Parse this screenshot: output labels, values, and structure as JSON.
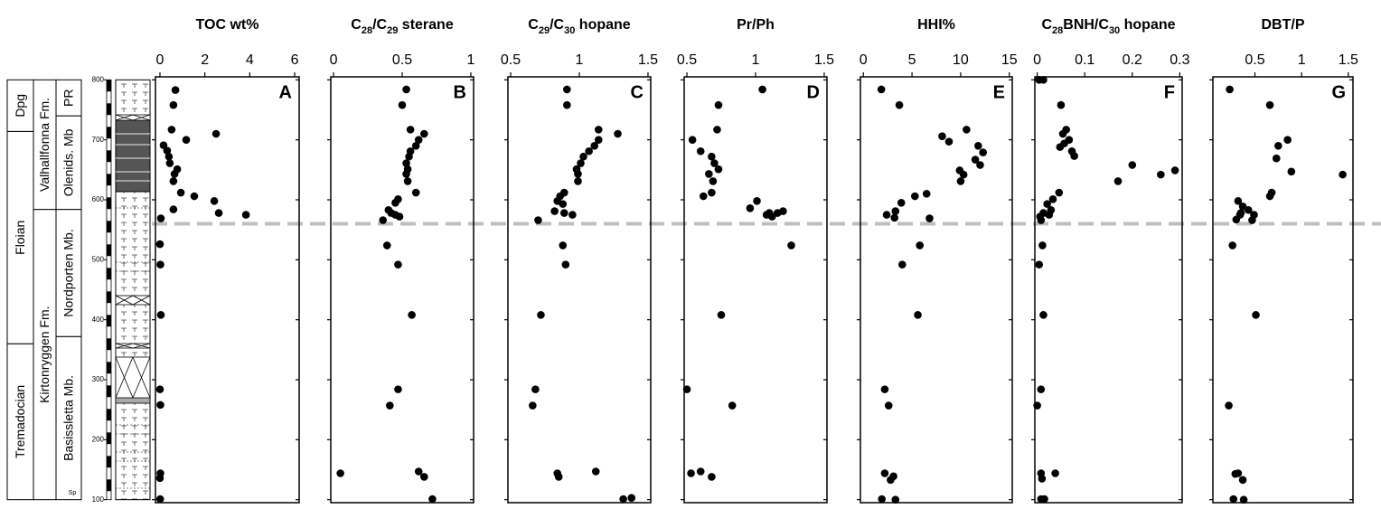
{
  "chart_data": [
    {
      "type": "scatter",
      "title": "TOC wt%",
      "panel_label": "A",
      "color": "#000000",
      "x": [
        0.69,
        0.6,
        0.52,
        1.17,
        2.5,
        0.16,
        0.32,
        0.4,
        0.44,
        0.77,
        0.65,
        0.6,
        0.93,
        1.53,
        2.42,
        2.62,
        0.6,
        3.83,
        0.04,
        0.0,
        0.02,
        0.04,
        0.0,
        0.02,
        0.02,
        0.0,
        0.01
      ],
      "y": [
        783,
        758,
        717,
        700,
        710,
        691,
        682,
        672,
        661,
        651,
        643,
        631,
        612,
        606,
        598,
        578,
        584,
        575,
        569,
        526,
        492,
        408,
        284,
        258,
        144,
        136,
        101
      ],
      "xlim": [
        -0.2,
        6.2
      ],
      "xticks": [
        0,
        2,
        4,
        6
      ],
      "ylim": [
        95,
        805
      ],
      "yticks": [
        100,
        200,
        300,
        400,
        500,
        600,
        700,
        800
      ]
    },
    {
      "type": "scatter",
      "title": "C28/C29 sterane",
      "panel_label": "B",
      "color": "#000000",
      "x": [
        0.53,
        0.5,
        0.56,
        0.66,
        0.62,
        0.6,
        0.56,
        0.55,
        0.53,
        0.54,
        0.53,
        0.54,
        0.6,
        0.47,
        0.45,
        0.4,
        0.42,
        0.45,
        0.48,
        0.36,
        0.39,
        0.47,
        0.57,
        0.47,
        0.41,
        0.05,
        0.62,
        0.66,
        0.72
      ],
      "y": [
        784,
        758,
        717,
        710,
        700,
        690,
        681,
        672,
        661,
        651,
        643,
        631,
        612,
        601,
        595,
        583,
        578,
        575,
        572,
        566,
        524,
        492,
        408,
        284,
        257,
        144,
        147,
        138,
        101
      ],
      "xlim": [
        -0.02,
        1.02
      ],
      "xticks": [
        0,
        0.5,
        1
      ],
      "ylim": [
        95,
        805
      ],
      "yticks": [
        100,
        200,
        300,
        400,
        500,
        600,
        700,
        800
      ]
    },
    {
      "type": "scatter",
      "title": "C29/C30 hopane",
      "panel_label": "C",
      "color": "#000000",
      "x": [
        0.91,
        0.91,
        1.14,
        1.28,
        1.14,
        1.11,
        1.07,
        1.03,
        1.01,
        0.98,
        0.99,
        0.99,
        0.89,
        0.86,
        0.84,
        0.88,
        0.82,
        0.89,
        0.95,
        0.7,
        0.88,
        0.9,
        0.72,
        0.68,
        0.66,
        0.84,
        0.85,
        1.12,
        1.32,
        1.38
      ],
      "y": [
        784,
        758,
        717,
        710,
        700,
        690,
        681,
        672,
        661,
        651,
        643,
        631,
        612,
        606,
        598,
        593,
        581,
        578,
        575,
        566,
        524,
        492,
        408,
        284,
        257,
        144,
        138,
        147,
        101,
        103
      ],
      "xlim": [
        0.48,
        1.52
      ],
      "xticks": [
        0.5,
        1,
        1.5
      ],
      "ylim": [
        95,
        805
      ],
      "yticks": [
        100,
        200,
        300,
        400,
        500,
        600,
        700,
        800
      ]
    },
    {
      "type": "scatter",
      "title": "Pr/Ph",
      "panel_label": "D",
      "color": "#000000",
      "x": [
        1.05,
        0.73,
        0.72,
        0.54,
        0.6,
        0.68,
        0.7,
        0.73,
        0.66,
        0.69,
        0.68,
        0.62,
        1.01,
        0.96,
        1.1,
        1.16,
        1.2,
        1.08,
        1.12,
        1.26,
        0.75,
        0.5,
        0.83,
        0.53,
        0.6,
        0.68
      ],
      "y": [
        784,
        758,
        717,
        700,
        681,
        672,
        661,
        651,
        643,
        631,
        612,
        606,
        598,
        586,
        578,
        578,
        581,
        575,
        572,
        524,
        408,
        284,
        257,
        144,
        147,
        138
      ],
      "xlim": [
        0.48,
        1.52
      ],
      "xticks": [
        0.5,
        1,
        1.5
      ],
      "ylim": [
        95,
        805
      ],
      "yticks": [
        100,
        200,
        300,
        400,
        500,
        600,
        700,
        800
      ]
    },
    {
      "type": "scatter",
      "title": "HHI%",
      "panel_label": "E",
      "color": "#000000",
      "x": [
        1.85,
        3.7,
        10.6,
        8.1,
        8.8,
        11.8,
        12.3,
        11.5,
        12,
        9.9,
        10.3,
        10,
        5.3,
        3.9,
        3.3,
        6.5,
        6.8,
        2.4,
        3.2,
        5.8,
        4,
        5.6,
        2.2,
        2.6,
        2.2,
        3.1,
        2.8,
        1.9,
        3.3
      ],
      "y": [
        784,
        758,
        717,
        706,
        697,
        690,
        679,
        667,
        658,
        649,
        642,
        631,
        606,
        595,
        581,
        610,
        569,
        575,
        570,
        524,
        492,
        408,
        284,
        257,
        144,
        139,
        133,
        101,
        100
      ],
      "xlim": [
        -0.3,
        15.3
      ],
      "xticks": [
        0,
        5,
        10,
        15
      ],
      "ylim": [
        95,
        805
      ],
      "yticks": [
        100,
        200,
        300,
        400,
        500,
        600,
        700,
        800
      ]
    },
    {
      "type": "scatter",
      "title": "C28BNH/C30 hopane",
      "panel_label": "F",
      "color": "#000000",
      "x": [
        0.004,
        0.013,
        0.05,
        0.061,
        0.054,
        0.067,
        0.057,
        0.048,
        0.073,
        0.078,
        0.2,
        0.26,
        0.29,
        0.17,
        0.046,
        0.033,
        0.021,
        0.029,
        0.013,
        0.006,
        0.025,
        0.008,
        0.011,
        0.004,
        0.013,
        0.008,
        0.0,
        0.008,
        0.038,
        0.01,
        0.008,
        0.015
      ],
      "y": [
        800,
        800,
        758,
        717,
        710,
        700,
        694,
        688,
        681,
        673,
        658,
        642,
        649,
        631,
        612,
        601,
        593,
        583,
        578,
        572,
        575,
        566,
        524,
        492,
        408,
        284,
        257,
        144,
        144,
        135,
        101,
        101
      ],
      "xlim": [
        -0.005,
        0.305
      ],
      "xticks": [
        0,
        0.1,
        0.2,
        0.3
      ],
      "ylim": [
        95,
        805
      ],
      "yticks": [
        100,
        200,
        300,
        400,
        500,
        600,
        700,
        800
      ]
    },
    {
      "type": "scatter",
      "title": "DBT/P",
      "panel_label": "G",
      "color": "#000000",
      "x": [
        0.23,
        0.66,
        0.85,
        0.75,
        0.73,
        0.89,
        1.44,
        0.68,
        0.66,
        0.32,
        0.37,
        0.35,
        0.43,
        0.34,
        0.49,
        0.3,
        0.47,
        0.26,
        0.51,
        0.22,
        0.32,
        0.29,
        0.37,
        0.27,
        0.38
      ],
      "y": [
        784,
        758,
        700,
        690,
        669,
        647,
        642,
        612,
        606,
        598,
        589,
        578,
        583,
        575,
        575,
        567,
        566,
        524,
        408,
        257,
        144,
        143,
        133,
        101,
        100
      ],
      "xlim": [
        0.05,
        1.55
      ],
      "xticks": [
        0.5,
        1,
        1.5
      ],
      "ylim": [
        95,
        805
      ],
      "yticks": [
        100,
        200,
        300,
        400,
        500,
        600,
        700,
        800
      ]
    }
  ],
  "stratigraphy": {
    "depth_axis": {
      "ylim": [
        100,
        800
      ],
      "yticks": [
        100,
        200,
        300,
        400,
        500,
        600,
        700,
        800
      ]
    },
    "stages": [
      {
        "label": "Tremadocian",
        "from": 100,
        "to": 360
      },
      {
        "label": "Floian",
        "from": 360,
        "to": 714
      },
      {
        "label": "Dpg",
        "from": 714,
        "to": 800
      }
    ],
    "formations": [
      {
        "label": "Kirtonryggen Fm.",
        "from": 100,
        "to": 584
      },
      {
        "label": "Valhallfonna Fm.",
        "from": 584,
        "to": 800
      }
    ],
    "members": [
      {
        "label": "Basissletta Mb.",
        "from": 100,
        "to": 372
      },
      {
        "label": "Nordporten Mb.",
        "from": 372,
        "to": 584
      },
      {
        "label": "Olenids. Mb",
        "from": 584,
        "to": 740
      },
      {
        "label": "PR",
        "from": 740,
        "to": 800
      }
    ],
    "member_note": "Sp"
  },
  "reference_line": {
    "y": 560,
    "color": "#bfbfbf"
  }
}
